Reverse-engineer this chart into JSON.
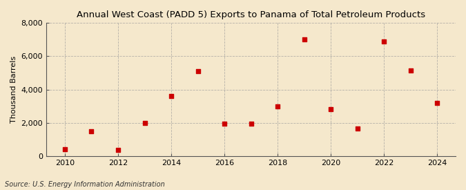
{
  "title": "Annual West Coast (PADD 5) Exports to Panama of Total Petroleum Products",
  "ylabel": "Thousand Barrels",
  "source": "Source: U.S. Energy Information Administration",
  "years": [
    2010,
    2011,
    2012,
    2013,
    2014,
    2015,
    2016,
    2017,
    2018,
    2019,
    2020,
    2021,
    2022,
    2023,
    2024
  ],
  "values": [
    400,
    1500,
    350,
    2000,
    3600,
    5100,
    1950,
    1950,
    3000,
    7000,
    2800,
    1650,
    6900,
    5150,
    3200
  ],
  "marker_color": "#cc0000",
  "marker": "s",
  "marker_size": 4,
  "bg_color": "#f5e8cc",
  "grid_color": "#999999",
  "ylim": [
    0,
    8000
  ],
  "yticks": [
    0,
    2000,
    4000,
    6000,
    8000
  ],
  "xticks": [
    2010,
    2012,
    2014,
    2016,
    2018,
    2020,
    2022,
    2024
  ],
  "title_fontsize": 9.5,
  "label_fontsize": 8,
  "tick_fontsize": 8,
  "source_fontsize": 7
}
